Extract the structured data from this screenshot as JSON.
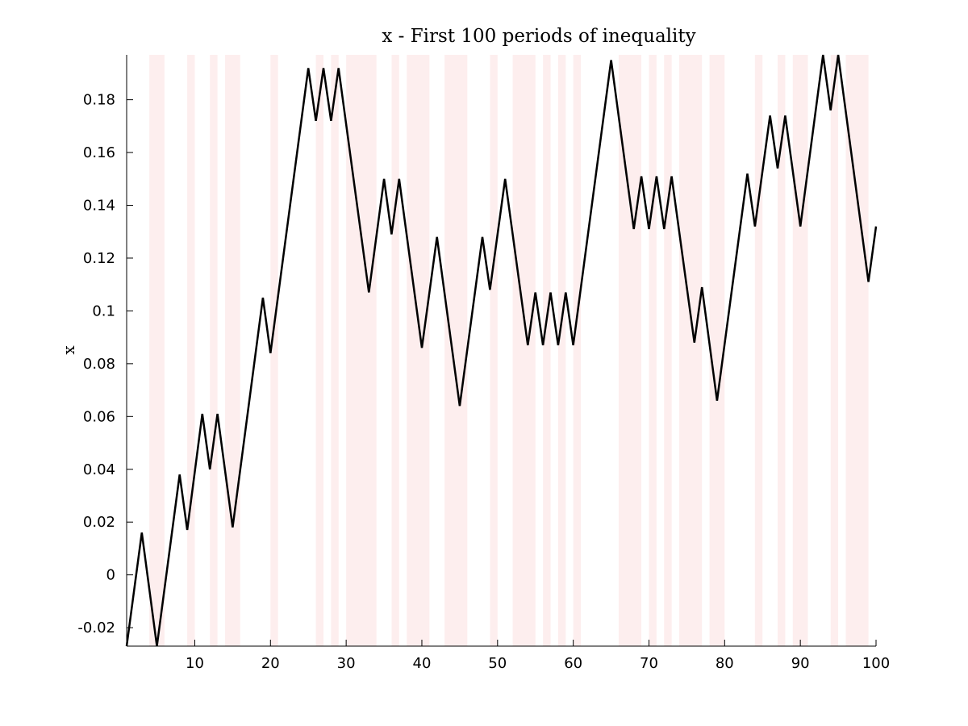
{
  "chart_data": {
    "type": "line",
    "title": "x - First 100 periods of inequality",
    "xlabel": "",
    "ylabel": "x",
    "xlim": [
      1,
      100
    ],
    "ylim": [
      -0.027,
      0.197
    ],
    "xticks": [
      10,
      20,
      30,
      40,
      50,
      60,
      70,
      80,
      90,
      100
    ],
    "xtick_labels": [
      "10",
      "20",
      "30",
      "40",
      "50",
      "60",
      "70",
      "80",
      "90",
      "100"
    ],
    "yticks": [
      -0.02,
      0,
      0.02,
      0.04,
      0.06,
      0.08,
      0.1,
      0.12,
      0.14,
      0.16,
      0.18
    ],
    "ytick_labels": [
      "-0.02",
      "0",
      "0.02",
      "0.04",
      "0.06",
      "0.08",
      "0.1",
      "0.12",
      "0.14",
      "0.16",
      "0.18"
    ],
    "grid": false,
    "line_color": "#000000",
    "shade_color": "#fdeeee",
    "shaded_periods": [
      [
        4,
        6
      ],
      [
        9,
        10
      ],
      [
        12,
        13
      ],
      [
        14,
        16
      ],
      [
        20,
        21
      ],
      [
        26,
        27
      ],
      [
        28,
        29
      ],
      [
        30,
        34
      ],
      [
        36,
        37
      ],
      [
        38,
        41
      ],
      [
        43,
        46
      ],
      [
        49,
        50
      ],
      [
        52,
        55
      ],
      [
        56,
        57
      ],
      [
        58,
        59
      ],
      [
        60,
        61
      ],
      [
        66,
        69
      ],
      [
        70,
        71
      ],
      [
        72,
        73
      ],
      [
        74,
        77
      ],
      [
        78,
        80
      ],
      [
        84,
        85
      ],
      [
        87,
        88
      ],
      [
        89,
        91
      ],
      [
        94,
        95
      ],
      [
        96,
        99
      ]
    ],
    "series": [
      {
        "x": [
          1,
          3,
          5,
          8,
          9,
          11,
          12,
          13,
          15,
          19,
          20,
          25,
          26,
          27,
          28,
          29,
          33,
          35,
          36,
          37,
          40,
          42,
          45,
          48,
          49,
          51,
          54,
          55,
          56,
          57,
          58,
          59,
          60,
          65,
          68,
          69,
          70,
          71,
          72,
          73,
          76,
          77,
          79,
          83,
          84,
          86,
          87,
          88,
          90,
          93,
          94,
          95,
          99,
          100
        ],
        "values": [
          -0.027,
          0.016,
          -0.027,
          0.038,
          0.017,
          0.061,
          0.04,
          0.061,
          0.018,
          0.105,
          0.084,
          0.192,
          0.172,
          0.192,
          0.172,
          0.192,
          0.107,
          0.15,
          0.129,
          0.15,
          0.086,
          0.128,
          0.064,
          0.128,
          0.108,
          0.15,
          0.087,
          0.107,
          0.087,
          0.107,
          0.087,
          0.107,
          0.087,
          0.195,
          0.131,
          0.151,
          0.131,
          0.151,
          0.131,
          0.151,
          0.088,
          0.109,
          0.066,
          0.152,
          0.132,
          0.174,
          0.154,
          0.174,
          0.132,
          0.197,
          0.176,
          0.197,
          0.111,
          0.132
        ]
      }
    ]
  }
}
